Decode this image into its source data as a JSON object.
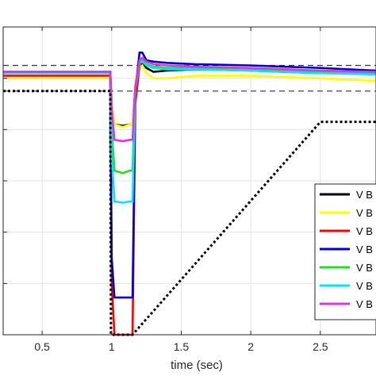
{
  "chart_data": {
    "type": "line",
    "title": "",
    "xlabel": "time (sec)",
    "ylabel": "",
    "xlim": [
      0.22,
      2.9
    ],
    "ylim": [
      0,
      1.2
    ],
    "x_ticks": [
      0.5,
      1,
      1.5,
      2,
      2.5
    ],
    "x_tick_labels": [
      "0.5",
      "1",
      "1.5",
      "2",
      "2.5"
    ],
    "grid": true,
    "legend_position": "right",
    "reference_lines": [
      {
        "y": 1.05,
        "style": "dashed",
        "color": "#333333"
      },
      {
        "y": 0.95,
        "style": "dashed",
        "color": "#333333"
      }
    ],
    "series": [
      {
        "name": "V B",
        "color": "#000000",
        "style": "solid",
        "x": [
          0.22,
          0.99,
          1.0,
          1.02,
          1.08,
          1.13,
          1.15,
          1.17,
          1.2,
          1.22,
          1.25,
          1.3,
          1.4,
          1.6,
          2.0,
          2.5,
          2.9
        ],
        "y": [
          1.02,
          1.02,
          0.9,
          0.82,
          0.815,
          0.82,
          0.82,
          0.96,
          1.05,
          1.06,
          1.04,
          1.025,
          1.03,
          1.035,
          1.03,
          1.02,
          1.02
        ]
      },
      {
        "name": "V B",
        "color": "#ffff00",
        "style": "solid",
        "x": [
          0.22,
          0.99,
          1.0,
          1.02,
          1.08,
          1.13,
          1.15,
          1.17,
          1.2,
          1.22,
          1.25,
          1.3,
          1.4,
          1.6,
          2.0,
          2.5,
          2.9
        ],
        "y": [
          1.0,
          1.0,
          0.9,
          0.82,
          0.81,
          0.82,
          0.82,
          0.95,
          1.04,
          1.05,
          1.02,
          1.0,
          1.0,
          1.01,
          1.01,
          1.0,
          0.99
        ]
      },
      {
        "name": "V B",
        "color": "#ff0000",
        "style": "solid",
        "x": [
          0.22,
          0.99,
          1.0,
          1.02,
          1.08,
          1.13,
          1.15,
          1.17,
          1.2,
          1.22,
          1.25,
          1.3,
          1.4,
          1.6,
          2.0,
          2.5,
          2.9
        ],
        "y": [
          1.01,
          1.01,
          0.2,
          0.0,
          0.0,
          0.0,
          0.0,
          0.9,
          1.05,
          1.07,
          1.05,
          1.04,
          1.04,
          1.04,
          1.035,
          1.025,
          1.02
        ]
      },
      {
        "name": "V B",
        "color": "#0000cc",
        "style": "solid",
        "x": [
          0.22,
          0.99,
          1.0,
          1.02,
          1.08,
          1.13,
          1.15,
          1.17,
          1.2,
          1.22,
          1.25,
          1.3,
          1.4,
          1.6,
          2.0,
          2.5,
          2.9
        ],
        "y": [
          1.025,
          1.025,
          0.3,
          0.145,
          0.145,
          0.145,
          0.145,
          0.95,
          1.1,
          1.1,
          1.07,
          1.065,
          1.06,
          1.055,
          1.05,
          1.04,
          1.03
        ]
      },
      {
        "name": "V B",
        "color": "#22dd22",
        "style": "solid",
        "x": [
          0.22,
          0.99,
          1.0,
          1.02,
          1.08,
          1.13,
          1.15,
          1.17,
          1.2,
          1.22,
          1.25,
          1.3,
          1.4,
          1.6,
          2.0,
          2.5,
          2.9
        ],
        "y": [
          1.02,
          1.02,
          0.8,
          0.64,
          0.63,
          0.64,
          0.64,
          0.96,
          1.06,
          1.07,
          1.055,
          1.045,
          1.04,
          1.04,
          1.035,
          1.025,
          1.02
        ]
      },
      {
        "name": "V B",
        "color": "#00e5ff",
        "style": "solid",
        "x": [
          0.22,
          0.99,
          1.0,
          1.02,
          1.08,
          1.13,
          1.15,
          1.17,
          1.2,
          1.22,
          1.25,
          1.3,
          1.4,
          1.6,
          2.0,
          2.5,
          2.9
        ],
        "y": [
          1.02,
          1.02,
          0.7,
          0.52,
          0.515,
          0.52,
          0.52,
          0.96,
          1.06,
          1.065,
          1.05,
          1.04,
          1.035,
          1.035,
          1.03,
          1.02,
          1.015
        ]
      },
      {
        "name": "V B",
        "color": "#e033e0",
        "style": "solid",
        "x": [
          0.22,
          0.99,
          1.0,
          1.02,
          1.08,
          1.13,
          1.15,
          1.17,
          1.2,
          1.22,
          1.25,
          1.3,
          1.4,
          1.6,
          2.0,
          2.5,
          2.9
        ],
        "y": [
          1.025,
          1.025,
          0.88,
          0.76,
          0.755,
          0.76,
          0.76,
          0.97,
          1.07,
          1.08,
          1.065,
          1.055,
          1.05,
          1.045,
          1.04,
          1.03,
          1.025
        ]
      },
      {
        "name": "",
        "color": "#000000",
        "style": "dotted",
        "x": [
          0.22,
          0.99,
          0.995,
          1.15,
          2.5,
          2.9
        ],
        "y": [
          0.95,
          0.95,
          0.0,
          0.0,
          0.83,
          0.83
        ]
      }
    ]
  }
}
